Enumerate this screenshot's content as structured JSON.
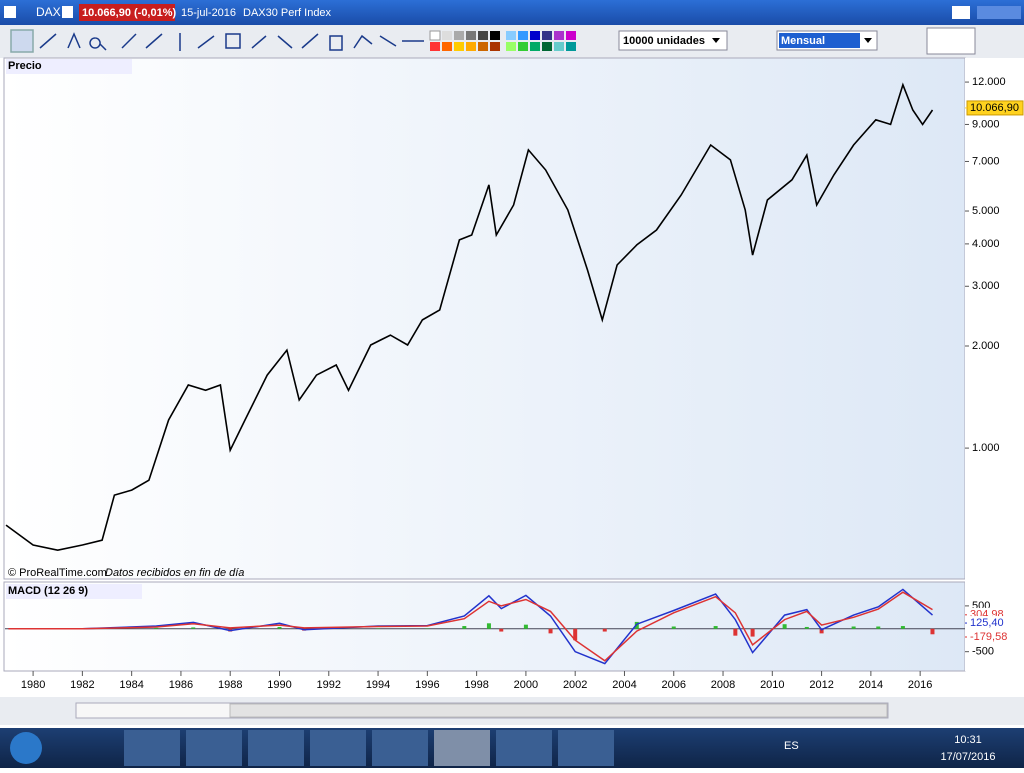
{
  "window": {
    "symbol": "DAX",
    "price": "10.066,90 (-0,01%)",
    "date": "15-jul-2016",
    "name": "DAX30 Perf Index"
  },
  "toolbar": {
    "units": "10000 unidades",
    "period": "Mensual"
  },
  "panels": {
    "price_label": "Precio",
    "macd_label": "MACD (12 26 9)",
    "credit": "© ProRealTime.com",
    "credit_note": "Datos recibidos en fin de día"
  },
  "chart_data": [
    {
      "type": "line",
      "log_scale": true,
      "color": "#000000",
      "x": [
        1978.9,
        1980,
        1981,
        1982,
        1982.8,
        1983.3,
        1984,
        1984.7,
        1985.5,
        1986.3,
        1987,
        1987.6,
        1988,
        1988.6,
        1989.5,
        1990.3,
        1990.8,
        1991.5,
        1992.3,
        1992.8,
        1993.7,
        1994.5,
        1995.2,
        1995.8,
        1996.5,
        1997.3,
        1997.8,
        1998.5,
        1998.8,
        1999.5,
        2000.1,
        2000.8,
        2001.7,
        2002.5,
        2003.1,
        2003.7,
        2004.5,
        2005.3,
        2006.3,
        2007.5,
        2008.3,
        2008.9,
        2009.2,
        2009.8,
        2010.8,
        2011.4,
        2011.8,
        2012.5,
        2013.3,
        2014.2,
        2014.8,
        2015.3,
        2015.7,
        2016.1,
        2016.5
      ],
      "values": [
        593,
        518,
        500,
        518,
        535,
        727,
        752,
        804,
        1210,
        1535,
        1480,
        1535,
        986,
        1210,
        1641,
        1945,
        1386,
        1641,
        1758,
        1480,
        2013,
        2153,
        2013,
        2387,
        2553,
        4111,
        4250,
        5970,
        4250,
        5210,
        7570,
        6610,
        5037,
        3350,
        2387,
        3467,
        3972,
        4395,
        5572,
        7830,
        7080,
        5037,
        3707,
        5390,
        6180,
        7310,
        5210,
        6390,
        7830,
        9290,
        9000,
        11780,
        9930,
        9000,
        9930
      ],
      "xlim": [
        1978.86,
        2017.82
      ],
      "ylim": [
        414,
        14130
      ],
      "yticks": [
        {
          "value": 1000,
          "label": "1.000"
        },
        {
          "value": 2000,
          "label": "2.000"
        },
        {
          "value": 3000,
          "label": "3.000"
        },
        {
          "value": 4000,
          "label": "4.000"
        },
        {
          "value": 5000,
          "label": "5.000"
        },
        {
          "value": 7000,
          "label": "7.000"
        },
        {
          "value": 9000,
          "label": "9.000"
        },
        {
          "value": 12000,
          "label": "12.000"
        }
      ],
      "last_value": {
        "value": 10066.9,
        "label": "10.066,90",
        "color": "#ffd21f"
      }
    },
    {
      "type": "macd",
      "x": [
        1979,
        1982,
        1985,
        1986.5,
        1988,
        1990,
        1991,
        1994,
        1996,
        1997.5,
        1998.5,
        1999,
        2000,
        2001,
        2002,
        2003.2,
        2004.5,
        2006,
        2007.7,
        2008.5,
        2009.2,
        2010.5,
        2011.4,
        2012,
        2013.3,
        2014.3,
        2015.3,
        2016.5
      ],
      "series": [
        {
          "color": "#2233cc",
          "values": [
            0,
            0,
            60,
            140,
            -40,
            120,
            -20,
            60,
            70,
            280,
            720,
            440,
            730,
            280,
            -500,
            -760,
            100,
            400,
            760,
            200,
            -520,
            300,
            420,
            -20,
            300,
            480,
            860,
            300
          ]
        },
        {
          "color": "#dd3333",
          "values": [
            0,
            0,
            40,
            110,
            20,
            80,
            20,
            50,
            60,
            220,
            600,
            500,
            640,
            380,
            -250,
            -700,
            -50,
            350,
            700,
            350,
            -350,
            200,
            380,
            80,
            250,
            430,
            800,
            420
          ]
        }
      ],
      "histogram": {
        "values": [
          0,
          0,
          20,
          30,
          -60,
          40,
          -40,
          10,
          10,
          60,
          120,
          -60,
          90,
          -100,
          -250,
          -60,
          150,
          50,
          60,
          -150,
          -170,
          100,
          40,
          -100,
          50,
          50,
          60,
          -120
        ],
        "positive_color": "#33bb33",
        "negative_color": "#dd3333"
      },
      "xlim": [
        1978.86,
        2017.82
      ],
      "ylim": [
        -900,
        1000
      ],
      "yticks": [
        -500,
        500
      ],
      "xticks": [
        1980,
        1982,
        1984,
        1986,
        1988,
        1990,
        1992,
        1994,
        1996,
        1998,
        2000,
        2002,
        2004,
        2006,
        2008,
        2010,
        2012,
        2014,
        2016
      ],
      "last_values": [
        {
          "value": 304.98,
          "label": "304,98",
          "color": "#dd3333"
        },
        {
          "value": 125.4,
          "label": "125,40",
          "color": "#2233cc"
        },
        {
          "value": -179.58,
          "label": "-179,58",
          "color": "#dd3333"
        }
      ]
    }
  ],
  "taskbar": {
    "lang": "ES",
    "time": "10:31",
    "date": "17/07/2016"
  }
}
